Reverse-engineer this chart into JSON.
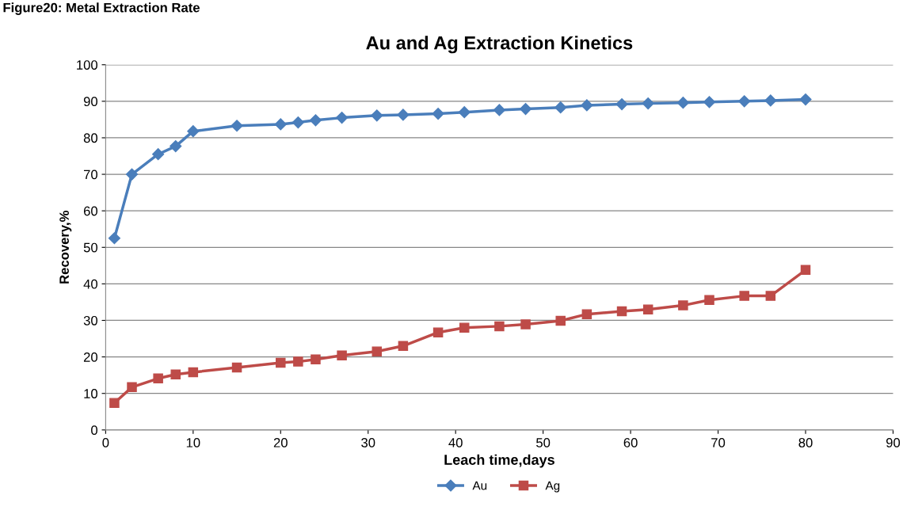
{
  "chart_data": {
    "type": "line",
    "title": "Au and Ag Extraction Kinetics",
    "xlabel": "Leach time,days",
    "ylabel": "Recovery,%",
    "annotations": [
      "Figure20: Metal Extraction Rate"
    ],
    "x": [
      1,
      3,
      6,
      8,
      10,
      15,
      20,
      22,
      24,
      27,
      31,
      34,
      38,
      41,
      45,
      48,
      52,
      55,
      59,
      62,
      66,
      69,
      73,
      76,
      80
    ],
    "series": [
      {
        "name": "Au",
        "color": "#4a7ebb",
        "marker": "diamond",
        "values": [
          52.5,
          70,
          75.5,
          77.7,
          81.8,
          83.3,
          83.7,
          84.2,
          84.8,
          85.5,
          86.1,
          86.3,
          86.6,
          87,
          87.6,
          87.9,
          88.3,
          88.9,
          89.2,
          89.4,
          89.6,
          89.8,
          90,
          90.2,
          90.5
        ]
      },
      {
        "name": "Ag",
        "color": "#be4b48",
        "marker": "square",
        "values": [
          7.4,
          11.7,
          14.1,
          15.2,
          15.8,
          17.1,
          18.4,
          18.7,
          19.3,
          20.4,
          21.5,
          23,
          26.7,
          28,
          28.4,
          28.9,
          29.9,
          31.7,
          32.5,
          33,
          34.1,
          35.6,
          36.7,
          36.7,
          43.8
        ]
      }
    ],
    "xlim": [
      0,
      90
    ],
    "xticks": [
      0,
      10,
      20,
      30,
      40,
      50,
      60,
      70,
      80,
      90
    ],
    "ylim": [
      0,
      100
    ],
    "yticks": [
      0,
      10,
      20,
      30,
      40,
      50,
      60,
      70,
      80,
      90,
      100
    ],
    "grid": "y",
    "legend": "bottom",
    "line_style": "solid"
  }
}
